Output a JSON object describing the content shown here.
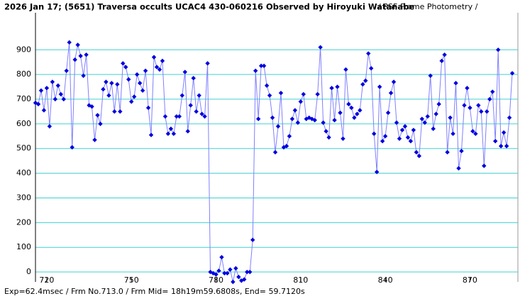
{
  "chart_data": {
    "type": "line",
    "title": "2026 Jan 17; (5651) Traversa occults UCAC4 430-060216 Observed by Hiroyuki Watanabe",
    "subtitle": "/ PSF-Frame Photometry /",
    "footer": "Exp=62.4msec / Frm No.713.0 / Frm Mid= 18h19m59.6808s, End= 59.7120s",
    "color": "#8080ff",
    "marker_color": "#0000e0",
    "grid": true,
    "grid_color": "#40d0d0",
    "xlim": [
      716,
      887
    ],
    "xticks": [
      720,
      750,
      780,
      810,
      840,
      870
    ],
    "ylim": [
      -40,
      1050
    ],
    "yticks": [
      0,
      100,
      200,
      300,
      400,
      500,
      600,
      700,
      800,
      900
    ],
    "x": [
      716,
      717,
      718,
      719,
      720,
      721,
      722,
      723,
      724,
      725,
      726,
      727,
      728,
      729,
      730,
      731,
      732,
      733,
      734,
      735,
      736,
      737,
      738,
      739,
      740,
      741,
      742,
      743,
      744,
      745,
      746,
      747,
      748,
      749,
      750,
      751,
      752,
      753,
      754,
      755,
      756,
      757,
      758,
      759,
      760,
      761,
      762,
      763,
      764,
      765,
      766,
      767,
      768,
      769,
      770,
      771,
      772,
      773,
      774,
      775,
      776,
      777,
      778,
      779,
      780,
      781,
      782,
      783,
      784,
      785,
      786,
      787,
      788,
      789,
      790,
      791,
      792,
      793,
      794,
      795,
      796,
      797,
      798,
      799,
      800,
      801,
      802,
      803,
      804,
      805,
      806,
      807,
      808,
      809,
      810,
      811,
      812,
      813,
      814,
      815,
      816,
      817,
      818,
      819,
      820,
      821,
      822,
      823,
      824,
      825,
      826,
      827,
      828,
      829,
      830,
      831,
      832,
      833,
      834,
      835,
      836,
      837,
      838,
      839,
      840,
      841,
      842,
      843,
      844,
      845,
      846,
      847,
      848,
      849,
      850,
      851,
      852,
      853,
      854,
      855,
      856,
      857,
      858,
      859,
      860,
      861,
      862,
      863,
      864,
      865,
      866,
      867,
      868,
      869,
      870,
      871,
      872,
      873,
      874,
      875,
      876,
      877,
      878,
      879,
      880,
      881,
      882,
      883,
      884,
      885
    ],
    "values": [
      685,
      680,
      735,
      655,
      745,
      590,
      770,
      700,
      755,
      720,
      700,
      815,
      930,
      505,
      860,
      920,
      875,
      795,
      880,
      675,
      670,
      535,
      635,
      600,
      740,
      770,
      715,
      765,
      650,
      760,
      650,
      845,
      830,
      780,
      690,
      710,
      800,
      765,
      735,
      815,
      665,
      555,
      870,
      830,
      820,
      855,
      630,
      560,
      580,
      560,
      630,
      630,
      715,
      810,
      570,
      675,
      785,
      650,
      715,
      640,
      630,
      845,
      0,
      -5,
      -10,
      5,
      60,
      -5,
      -5,
      10,
      -40,
      15,
      -20,
      -35,
      -30,
      0,
      0,
      130,
      815,
      620,
      835,
      835,
      755,
      715,
      625,
      485,
      590,
      725,
      505,
      510,
      550,
      620,
      655,
      605,
      690,
      720,
      620,
      625,
      620,
      615,
      720,
      910,
      605,
      570,
      545,
      745,
      615,
      750,
      645,
      540,
      820,
      680,
      665,
      625,
      640,
      655,
      760,
      775,
      885,
      825,
      560,
      405,
      750,
      530,
      550,
      645,
      725,
      770,
      605,
      540,
      575,
      590,
      545,
      530,
      575,
      485,
      470,
      620,
      605,
      630,
      795,
      580,
      640,
      680,
      855,
      880,
      485,
      625,
      560,
      765,
      420,
      490,
      675,
      745,
      665,
      570,
      560,
      675,
      650,
      430,
      650,
      700,
      730,
      530,
      900,
      510,
      565,
      510,
      625,
      805
    ]
  }
}
